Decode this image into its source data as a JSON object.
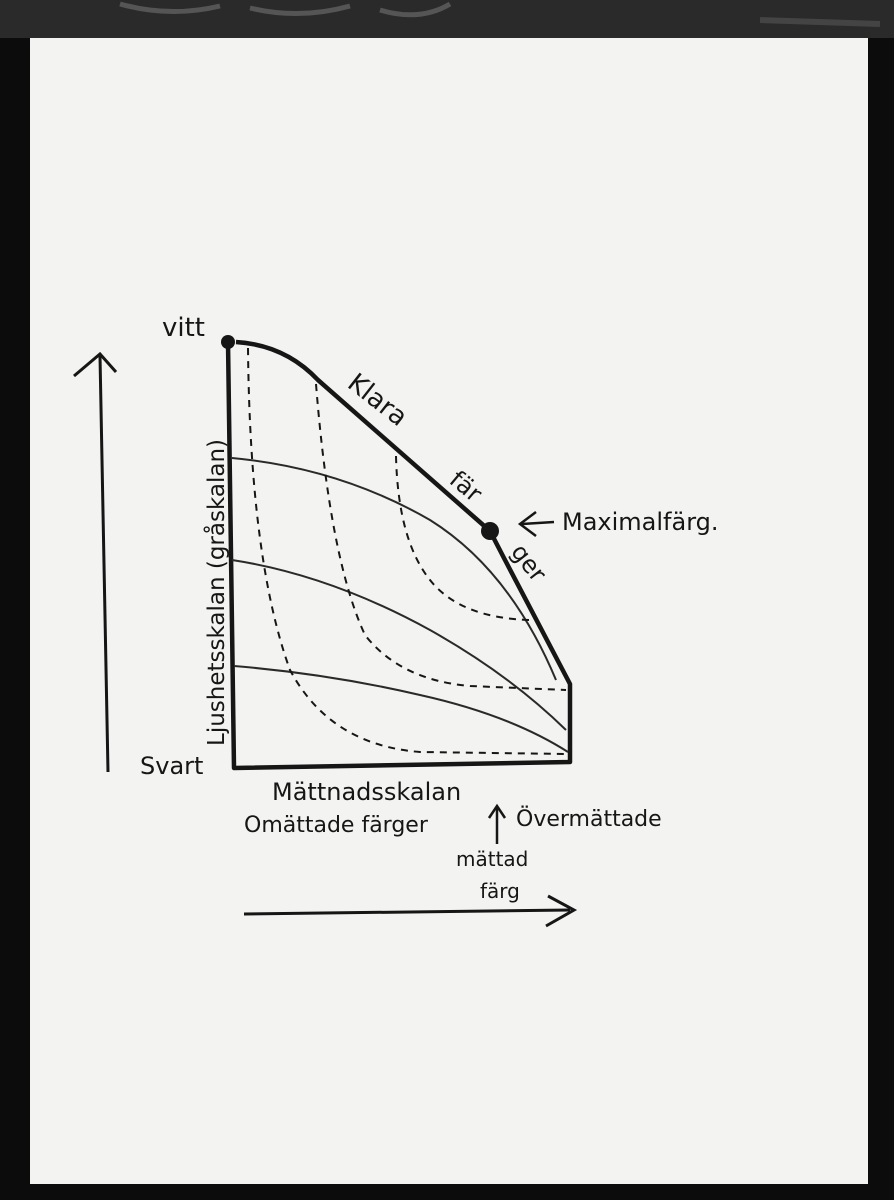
{
  "labels": {
    "white": "vitt",
    "black": "Svart",
    "lightness_axis": "Ljushetsskalan (gråskalan)",
    "clear_colors_1": "Klara",
    "clear_colors_2": "fär",
    "clear_colors_3": "ger",
    "max_color": "Maximalfärg.",
    "saturation_axis": "Mättnadsskalan",
    "unsaturated": "Omättade färger",
    "oversaturated": "Övermättade",
    "saturated_1": "mättad",
    "saturated_2": "färg"
  },
  "colors": {
    "ink": "#161616",
    "paper": "#f3f3f1",
    "border": "#0c0c0c"
  }
}
